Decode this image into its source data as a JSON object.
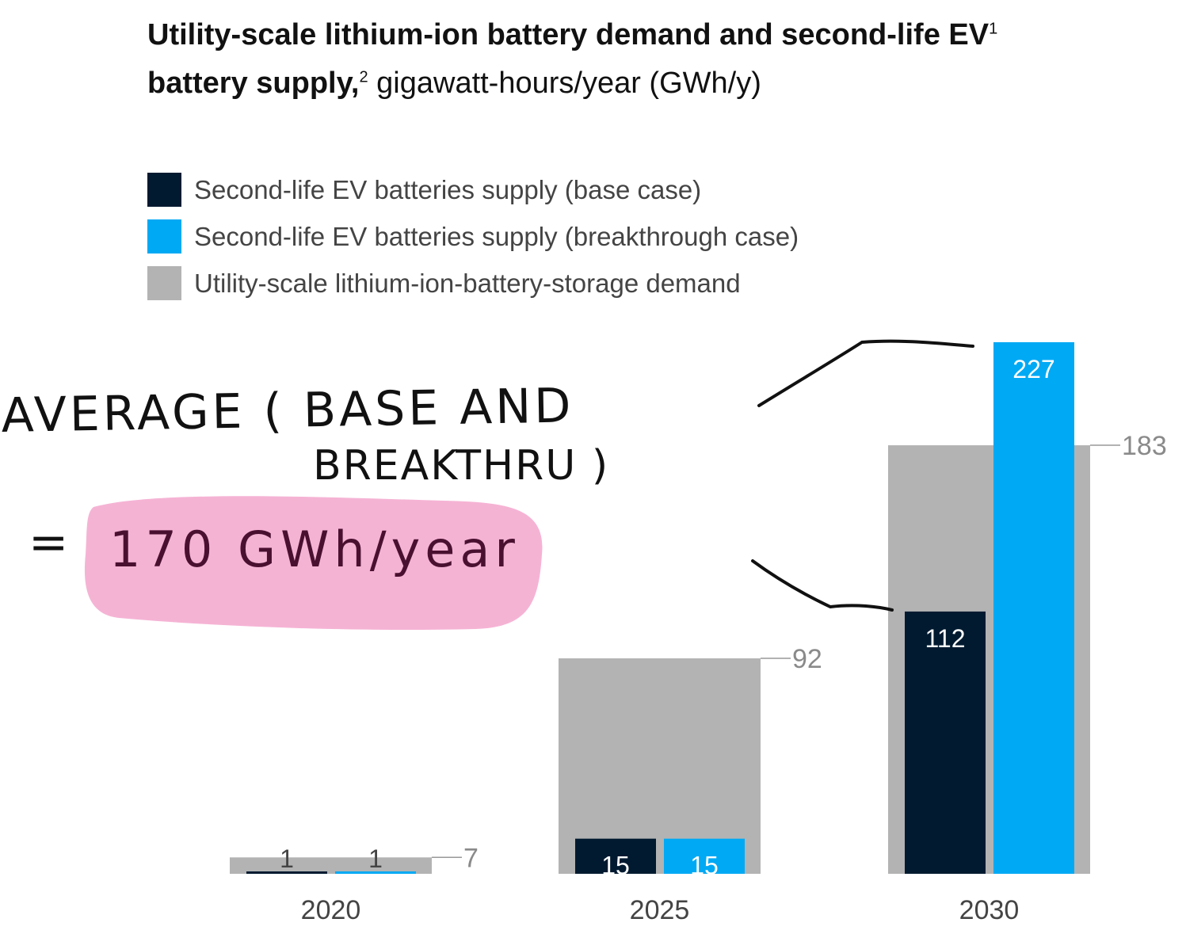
{
  "title": {
    "bold_part": "Utility-scale lithium-ion battery demand and second-life EV",
    "sup1": "1",
    "bold_part2": "battery supply,",
    "sup2": "2",
    "unit": " gigawatt-hours/year (GWh/y)"
  },
  "legend": [
    {
      "label": "Second-life EV batteries supply (base case)",
      "color": "#011a30"
    },
    {
      "label": "Second-life EV batteries supply (breakthrough case)",
      "color": "#00a9f4"
    },
    {
      "label": "Utility-scale lithium-ion-battery-storage demand",
      "color": "#b3b3b3"
    }
  ],
  "chart_data": {
    "type": "bar",
    "categories": [
      "2020",
      "2025",
      "2030"
    ],
    "series": [
      {
        "name": "Second-life EV batteries supply (base case)",
        "values": [
          1,
          15,
          112
        ],
        "color": "#011a30"
      },
      {
        "name": "Second-life EV batteries supply (breakthrough case)",
        "values": [
          1,
          15,
          227
        ],
        "color": "#00a9f4"
      },
      {
        "name": "Utility-scale lithium-ion-battery-storage demand",
        "values": [
          7,
          92,
          183
        ],
        "color": "#b3b3b3"
      }
    ],
    "labels": {
      "base": [
        "1",
        "15",
        "112"
      ],
      "breakthrough": [
        "1",
        "15",
        "227"
      ],
      "demand": [
        "7",
        "92",
        "183"
      ]
    },
    "ylim": [
      0,
      227
    ],
    "grid": false
  },
  "annotation": {
    "line1": "AVERAGE ( BASE AND",
    "line2": "BREAKTHRU )",
    "line3_prefix": "=",
    "line3_value": "170 GWh/year",
    "highlight_color": "#f4afd2"
  }
}
